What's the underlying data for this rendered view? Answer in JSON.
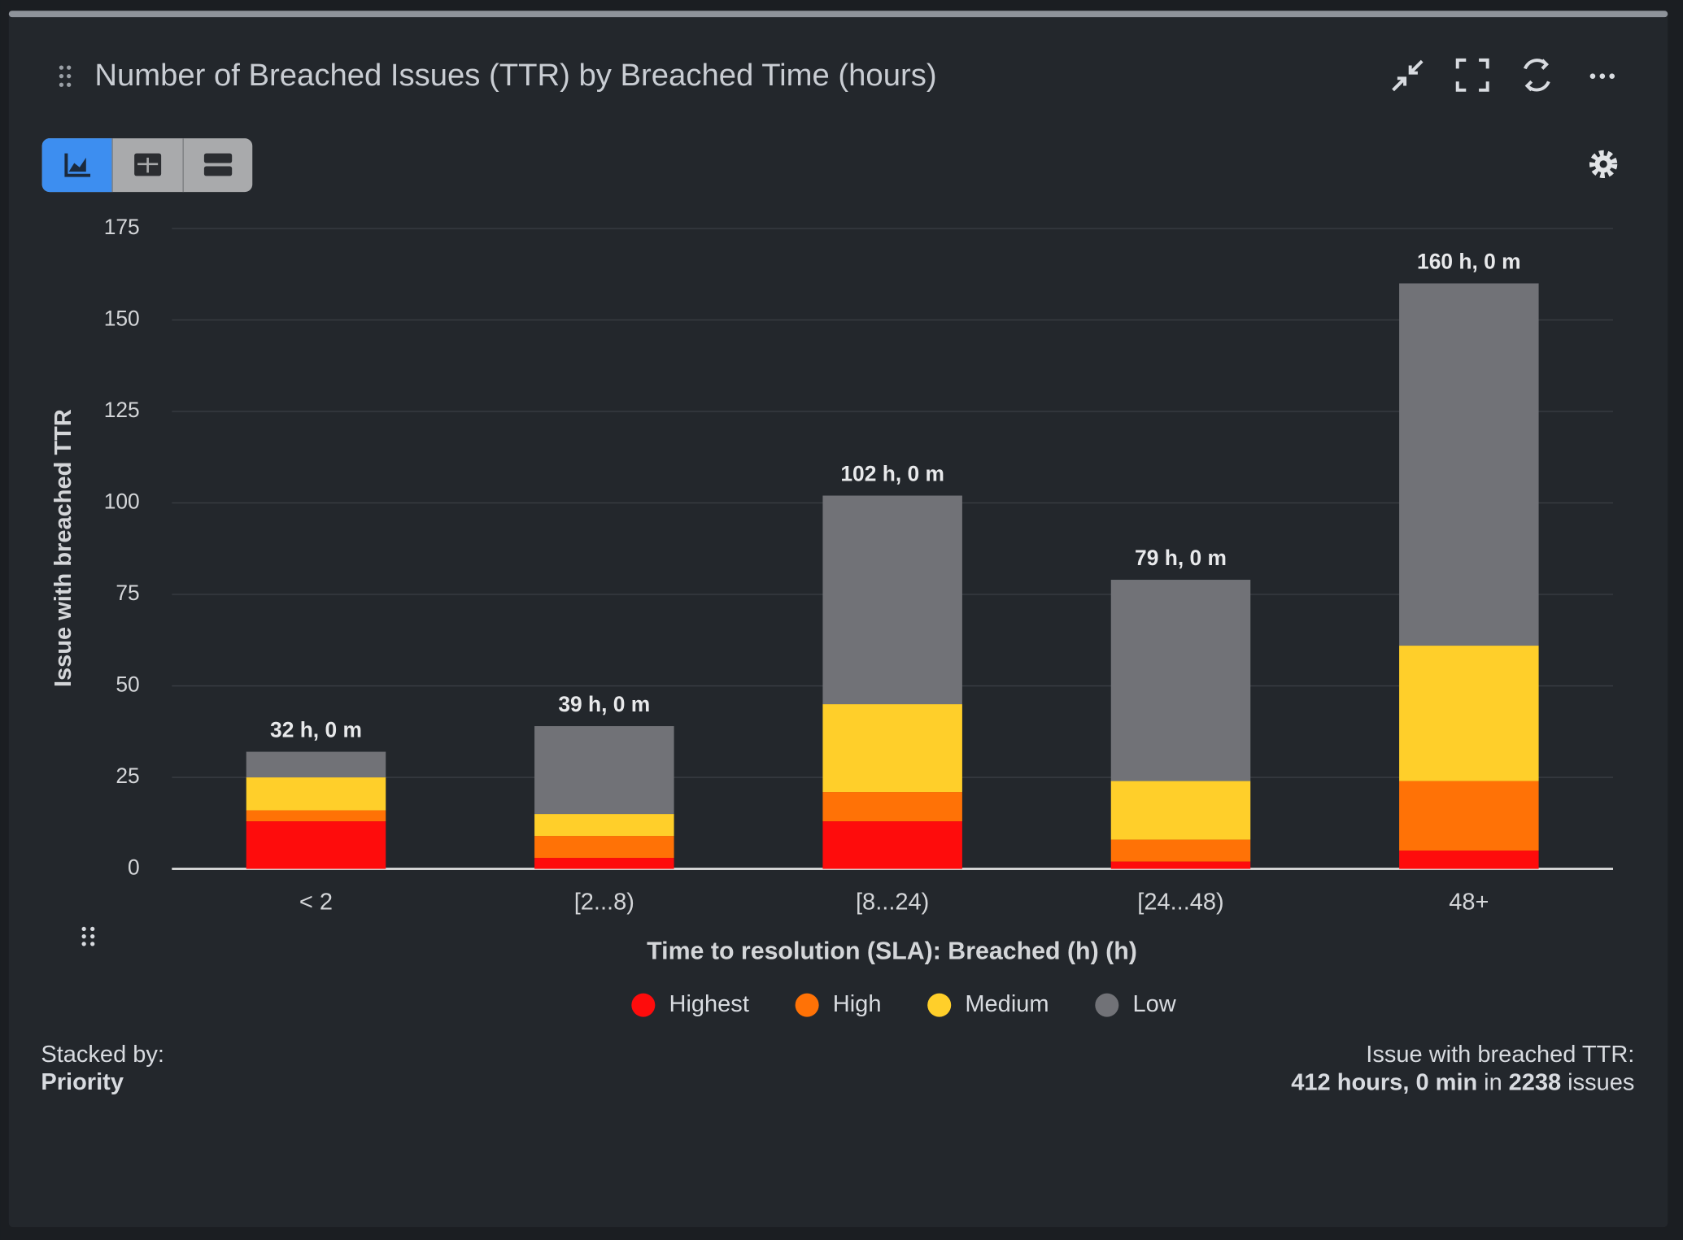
{
  "header": {
    "title": "Number of Breached Issues (TTR) by Breached Time (hours)"
  },
  "chart_data": {
    "type": "stacked_bar",
    "categories": [
      "< 2",
      "[2...8)",
      "[8...24)",
      "[24...48)",
      "48+"
    ],
    "series": [
      {
        "name": "Highest",
        "color": "#fe0c0c",
        "values": [
          13,
          3,
          13,
          2,
          5
        ]
      },
      {
        "name": "High",
        "color": "#ff7206",
        "values": [
          3,
          6,
          8,
          6,
          19
        ]
      },
      {
        "name": "Medium",
        "color": "#ffcf2a",
        "values": [
          9,
          6,
          24,
          16,
          37
        ]
      },
      {
        "name": "Low",
        "color": "#717277",
        "values": [
          7,
          24,
          57,
          55,
          99
        ]
      }
    ],
    "totals": [
      32,
      39,
      102,
      79,
      160
    ],
    "total_labels": [
      "32 h, 0 m",
      "39 h, 0 m",
      "102 h, 0 m",
      "79 h, 0 m",
      "160 h, 0 m"
    ],
    "ylim": [
      0,
      175
    ],
    "yticks": [
      0,
      25,
      50,
      75,
      100,
      125,
      150,
      175
    ],
    "y_label": "Issue with breached TTR",
    "x_label": "Time to resolution (SLA): Breached (h) (h)",
    "grid": true,
    "legend": "bottom"
  },
  "footer": {
    "stacked_by_label": "Stacked by:",
    "stacked_by": "Priority",
    "summary_label": "Issue with breached TTR:",
    "summary_time": "412 hours, 0 min",
    "summary_in": "in",
    "summary_count": "2238",
    "summary_unit": "issues"
  }
}
